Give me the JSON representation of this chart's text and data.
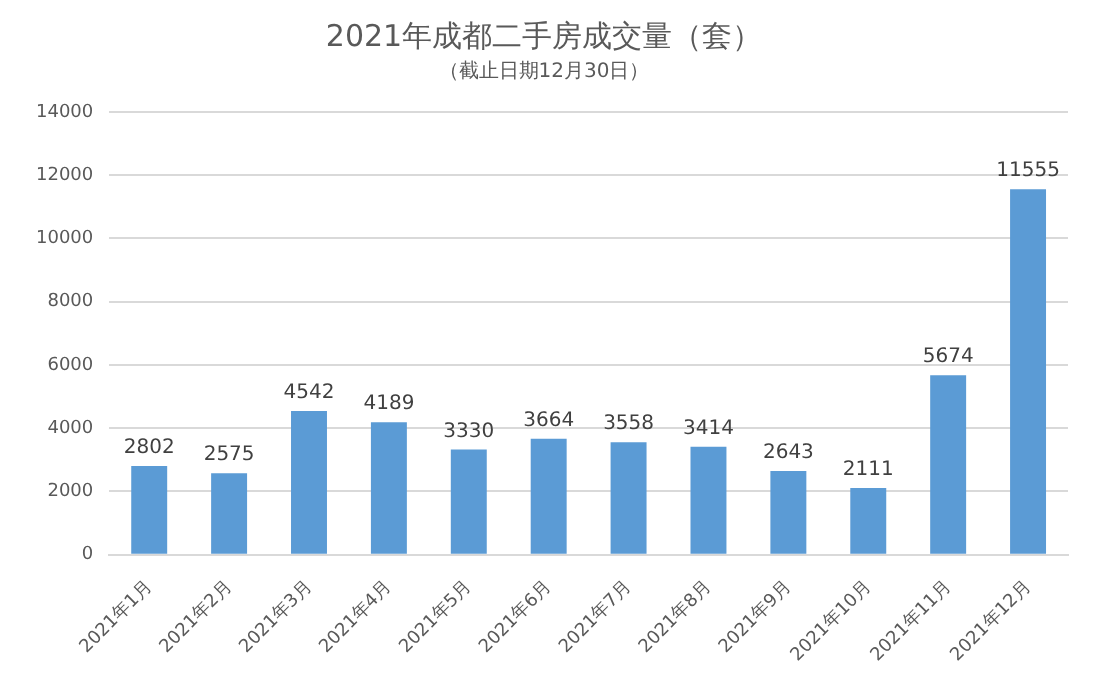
{
  "chart_data": {
    "type": "bar",
    "title": "2021年成都二手房成交量（套）",
    "subtitle": "（截止日期12月30日）",
    "categories": [
      "2021年1月",
      "2021年2月",
      "2021年3月",
      "2021年4月",
      "2021年5月",
      "2021年6月",
      "2021年7月",
      "2021年8月",
      "2021年9月",
      "2021年10月",
      "2021年11月",
      "2021年12月"
    ],
    "values": [
      2802,
      2575,
      4542,
      4189,
      3330,
      3664,
      3558,
      3414,
      2643,
      2111,
      5674,
      11555
    ],
    "color": "#5b9bd5",
    "ylim": [
      0,
      14000
    ],
    "yticks": [
      0,
      2000,
      4000,
      6000,
      8000,
      10000,
      12000,
      14000
    ],
    "grid": "y",
    "data_labels": true
  }
}
